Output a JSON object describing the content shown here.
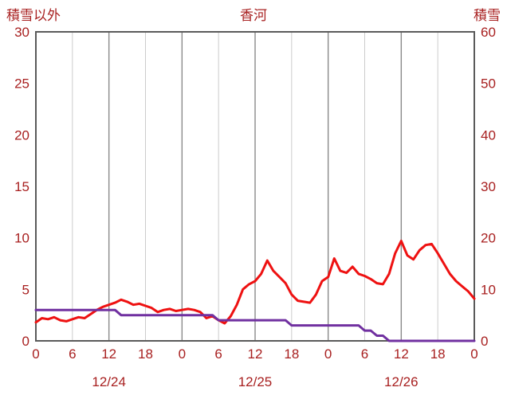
{
  "header": {
    "left_label": "積雪以外",
    "title": "香河",
    "right_label": "積雪"
  },
  "colors": {
    "label_text": "#a82020",
    "red_line": "#ee1111",
    "purple_line": "#7030a0",
    "grid_light": "#cccccc",
    "grid_dark": "#8a8a8a",
    "plot_border": "#5a5a5a"
  },
  "chart_data": {
    "type": "line",
    "title": "香河",
    "grid": "vertical-only",
    "legend": "none",
    "left_axis": {
      "label": "積雪以外",
      "min": 0,
      "max": 30,
      "ticks": [
        "0",
        "5",
        "10",
        "15",
        "20",
        "25",
        "30"
      ]
    },
    "right_axis": {
      "label": "積雪",
      "min": 0,
      "max": 60,
      "ticks": [
        "0",
        "10",
        "20",
        "30",
        "40",
        "50",
        "60"
      ]
    },
    "x_axis": {
      "min_hour": 0,
      "max_hour": 72,
      "tick_hours": [
        0,
        6,
        12,
        18,
        24,
        30,
        36,
        42,
        48,
        54,
        60,
        66,
        72
      ],
      "tick_labels": [
        "0",
        "6",
        "12",
        "18",
        "0",
        "6",
        "12",
        "18",
        "0",
        "6",
        "12",
        "18",
        "0"
      ],
      "date_labels": [
        {
          "label": "12/24",
          "center_hour": 12
        },
        {
          "label": "12/25",
          "center_hour": 36
        },
        {
          "label": "12/26",
          "center_hour": 60
        }
      ]
    },
    "series": [
      {
        "name": "積雪以外",
        "axis": "left",
        "color": "#ee1111",
        "start_hour": 0,
        "step_hours": 1,
        "values": [
          1.8,
          2.2,
          2.1,
          2.3,
          2.0,
          1.9,
          2.1,
          2.3,
          2.2,
          2.6,
          3.0,
          3.3,
          3.5,
          3.7,
          4.0,
          3.8,
          3.5,
          3.6,
          3.4,
          3.2,
          2.8,
          3.0,
          3.1,
          2.9,
          3.0,
          3.1,
          3.0,
          2.8,
          2.2,
          2.4,
          2.0,
          1.7,
          2.4,
          3.5,
          5.0,
          5.5,
          5.8,
          6.5,
          7.8,
          6.8,
          6.2,
          5.6,
          4.5,
          3.9,
          3.8,
          3.7,
          4.5,
          5.8,
          6.2,
          8.0,
          6.8,
          6.6,
          7.2,
          6.5,
          6.3,
          6.0,
          5.6,
          5.5,
          6.5,
          8.5,
          9.7,
          8.3,
          7.9,
          8.8,
          9.3,
          9.4,
          8.5,
          7.5,
          6.5,
          5.8,
          5.3,
          4.8,
          4.1
        ]
      },
      {
        "name": "積雪",
        "axis": "right",
        "color": "#7030a0",
        "start_hour": 0,
        "step_hours": 1,
        "values": [
          6,
          6,
          6,
          6,
          6,
          6,
          6,
          6,
          6,
          6,
          6,
          6,
          6,
          6,
          5,
          5,
          5,
          5,
          5,
          5,
          5,
          5,
          5,
          5,
          5,
          5,
          5,
          5,
          5,
          5,
          4,
          4,
          4,
          4,
          4,
          4,
          4,
          4,
          4,
          4,
          4,
          4,
          3,
          3,
          3,
          3,
          3,
          3,
          3,
          3,
          3,
          3,
          3,
          3,
          2,
          2,
          1,
          1,
          0,
          0,
          0,
          0,
          0,
          0,
          0,
          0,
          0,
          0,
          0,
          0,
          0,
          0,
          0
        ]
      }
    ]
  }
}
